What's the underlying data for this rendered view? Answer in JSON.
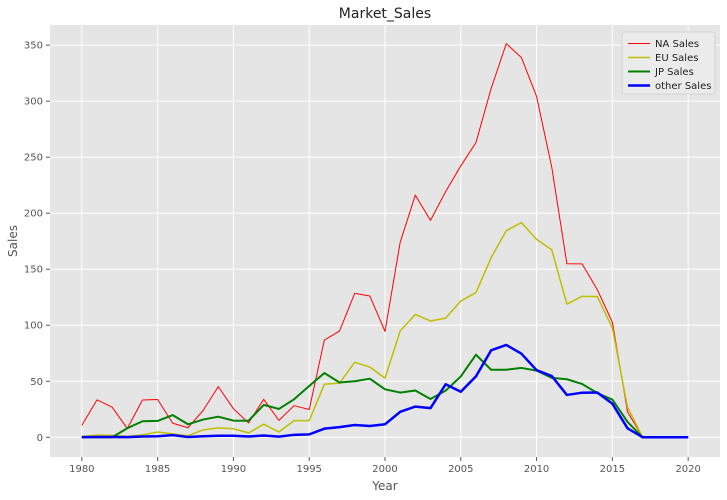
{
  "chart_data": {
    "type": "line",
    "title": "Market_Sales",
    "xlabel": "Year",
    "ylabel": "Sales",
    "xlim": [
      1977.9,
      2022.1
    ],
    "ylim": [
      -17.6,
      368
    ],
    "x_ticks": [
      1980,
      1985,
      1990,
      1995,
      2000,
      2005,
      2010,
      2015,
      2020
    ],
    "y_ticks": [
      0,
      50,
      100,
      150,
      200,
      250,
      300,
      350
    ],
    "grid": true,
    "legend_position": "top-right",
    "x": [
      1980,
      1981,
      1982,
      1983,
      1984,
      1985,
      1986,
      1987,
      1988,
      1989,
      1990,
      1991,
      1992,
      1993,
      1994,
      1995,
      1996,
      1997,
      1998,
      1999,
      2000,
      2001,
      2002,
      2003,
      2004,
      2005,
      2006,
      2007,
      2008,
      2009,
      2010,
      2011,
      2012,
      2013,
      2014,
      2015,
      2016,
      2017,
      2018,
      2019,
      2020
    ],
    "series": [
      {
        "name": "NA Sales",
        "color": "#ff0000",
        "stroke_width": 1,
        "values": [
          10.6,
          33.4,
          26.9,
          7.8,
          33.3,
          33.7,
          12.5,
          8.5,
          23.9,
          45.2,
          25.5,
          12.8,
          33.9,
          15.1,
          28.2,
          24.8,
          86.8,
          94.8,
          128.4,
          126.1,
          94.5,
          173.9,
          216.2,
          193.6,
          219.3,
          242.2,
          263.1,
          311.2,
          351.4,
          338.9,
          304.2,
          241.2,
          154.9,
          154.8,
          131.9,
          102.8,
          22.7,
          0,
          0,
          0,
          0
        ]
      },
      {
        "name": "EU Sales",
        "color": "#bfbf00",
        "stroke_width": 1.5,
        "values": [
          0.7,
          1.9,
          1.7,
          0.8,
          2.1,
          4.7,
          3.0,
          1.4,
          6.6,
          8.4,
          7.6,
          3.9,
          11.7,
          4.7,
          14.9,
          14.9,
          47.3,
          48.3,
          66.9,
          62.7,
          52.8,
          94.9,
          109.7,
          103.8,
          106.4,
          121.6,
          129.2,
          160.2,
          184.4,
          191.6,
          176.6,
          167.4,
          118.8,
          125.8,
          125.7,
          97.7,
          26.8,
          0,
          0,
          0,
          0
        ]
      },
      {
        "name": "JP Sales",
        "color": "#008000",
        "stroke_width": 2,
        "values": [
          0,
          0,
          0,
          8.1,
          14.3,
          14.6,
          19.8,
          11.6,
          15.8,
          18.4,
          14.9,
          14.8,
          28.9,
          25.3,
          33.9,
          45.8,
          57.4,
          48.9,
          50.0,
          52.3,
          42.8,
          39.9,
          41.8,
          34.2,
          41.6,
          54.3,
          73.7,
          60.3,
          60.3,
          61.9,
          59.5,
          53.0,
          51.8,
          47.6,
          39.5,
          33.7,
          13.7,
          0,
          0,
          0,
          0
        ]
      },
      {
        "name": "other Sales",
        "color": "#0000ff",
        "stroke_width": 2.5,
        "values": [
          0.1,
          0.3,
          0.3,
          0.1,
          0.7,
          0.9,
          1.9,
          0.2,
          0.9,
          1.4,
          1.4,
          0.7,
          1.6,
          0.6,
          2.2,
          2.6,
          7.7,
          9.1,
          11.0,
          10.1,
          11.6,
          22.7,
          27.4,
          26.0,
          47.3,
          40.6,
          54.4,
          77.6,
          82.4,
          74.6,
          59.9,
          54.7,
          37.8,
          39.8,
          40.0,
          30.0,
          8.0,
          0,
          0,
          0,
          0
        ]
      }
    ]
  }
}
